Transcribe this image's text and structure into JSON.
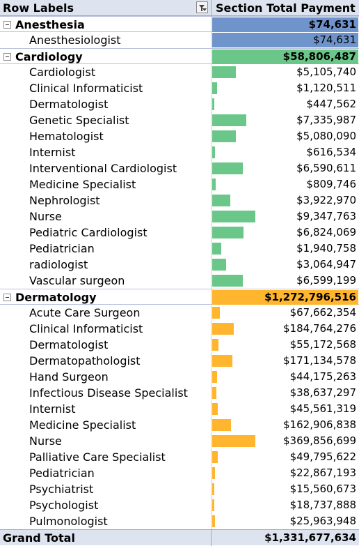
{
  "header": {
    "row_labels": "Row Labels",
    "value_label": "Section Total Payment"
  },
  "sections": [
    {
      "name": "Anesthesia",
      "total": "$74,631",
      "total_value": 74631,
      "color": "#6f94cc",
      "items": [
        {
          "label": "Anesthesiologist",
          "value": "$74,631",
          "amount": 74631
        }
      ]
    },
    {
      "name": "Cardiology",
      "total": "$58,806,487",
      "total_value": 58806487,
      "color": "#6bc789",
      "items": [
        {
          "label": "Cardiologist",
          "value": "$5,105,740",
          "amount": 5105740
        },
        {
          "label": "Clinical Informaticist",
          "value": "$1,120,511",
          "amount": 1120511
        },
        {
          "label": "Dermatologist",
          "value": "$447,562",
          "amount": 447562
        },
        {
          "label": "Genetic Specialist",
          "value": "$7,335,987",
          "amount": 7335987
        },
        {
          "label": "Hematologist",
          "value": "$5,080,090",
          "amount": 5080090
        },
        {
          "label": "Internist",
          "value": "$616,534",
          "amount": 616534
        },
        {
          "label": "Interventional Cardiologist",
          "value": "$6,590,611",
          "amount": 6590611
        },
        {
          "label": "Medicine Specialist",
          "value": "$809,746",
          "amount": 809746
        },
        {
          "label": "Nephrologist",
          "value": "$3,922,970",
          "amount": 3922970
        },
        {
          "label": "Nurse",
          "value": "$9,347,763",
          "amount": 9347763
        },
        {
          "label": "Pediatric Cardiologist",
          "value": "$6,824,069",
          "amount": 6824069
        },
        {
          "label": "Pediatrician",
          "value": "$1,940,758",
          "amount": 1940758
        },
        {
          "label": "radiologist",
          "value": "$3,064,947",
          "amount": 3064947
        },
        {
          "label": "Vascular surgeon",
          "value": "$6,599,199",
          "amount": 6599199
        }
      ]
    },
    {
      "name": "Dermatology",
      "total": "$1,272,796,516",
      "total_value": 1272796516,
      "color": "#ffb52e",
      "items": [
        {
          "label": "Acute Care Surgeon",
          "value": "$67,662,354",
          "amount": 67662354
        },
        {
          "label": "Clinical Informaticist",
          "value": "$184,764,276",
          "amount": 184764276
        },
        {
          "label": "Dermatologist",
          "value": "$55,172,568",
          "amount": 55172568
        },
        {
          "label": "Dermatopathologist",
          "value": "$171,134,578",
          "amount": 171134578
        },
        {
          "label": "Hand Surgeon",
          "value": "$44,175,263",
          "amount": 44175263
        },
        {
          "label": "Infectious Disease Specialist",
          "value": "$38,637,297",
          "amount": 38637297
        },
        {
          "label": "Internist",
          "value": "$45,561,319",
          "amount": 45561319
        },
        {
          "label": "Medicine Specialist",
          "value": "$162,906,838",
          "amount": 162906838
        },
        {
          "label": "Nurse",
          "value": "$369,856,699",
          "amount": 369856699
        },
        {
          "label": "Palliative Care Specialist",
          "value": "$49,795,622",
          "amount": 49795622
        },
        {
          "label": "Pediatrician",
          "value": "$22,867,193",
          "amount": 22867193
        },
        {
          "label": "Psychiatrist",
          "value": "$15,560,673",
          "amount": 15560673
        },
        {
          "label": "Psychologist",
          "value": "$18,737,888",
          "amount": 18737888
        },
        {
          "label": "Pulmonologist",
          "value": "$25,963,948",
          "amount": 25963948
        }
      ]
    }
  ],
  "grand_total": {
    "label": "Grand Total",
    "value": "$1,331,677,634"
  }
}
